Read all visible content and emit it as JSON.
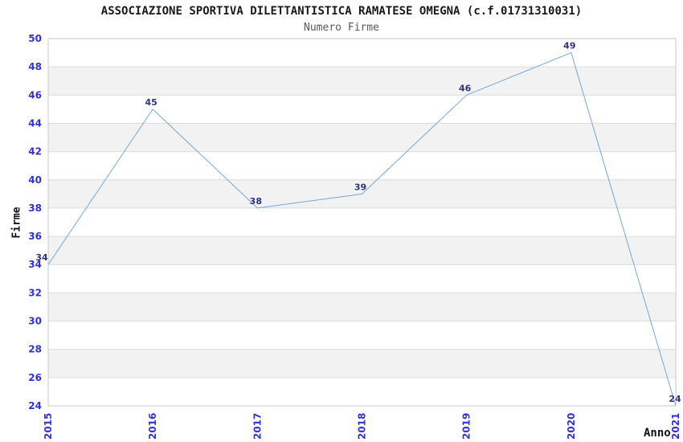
{
  "header": {
    "title": "ASSOCIAZIONE SPORTIVA DILETTANTISTICA RAMATESE OMEGNA (c.f.01731310031)",
    "subtitle": "Numero Firme"
  },
  "chart_data": {
    "type": "line",
    "title": "ASSOCIAZIONE SPORTIVA DILETTANTISTICA RAMATESE OMEGNA (c.f.01731310031)",
    "subtitle": "Numero Firme",
    "xlabel": "Anno",
    "ylabel": "Firme",
    "categories": [
      "2015",
      "2016",
      "2017",
      "2018",
      "2019",
      "2020",
      "2021"
    ],
    "values": [
      34,
      45,
      38,
      39,
      46,
      49,
      24
    ],
    "point_labels": [
      "34",
      "45",
      "38",
      "39",
      "46",
      "49",
      "24"
    ],
    "ylim": [
      24,
      50
    ],
    "ytick_step": 2,
    "yticks": [
      24,
      26,
      28,
      30,
      32,
      34,
      36,
      38,
      40,
      42,
      44,
      46,
      48,
      50
    ],
    "grid": "horizontal-bands",
    "legend": "none",
    "colors": {
      "line": "#74a7dd",
      "tick_label": "#3232cd",
      "point_label": "#333380",
      "band_gray": "#f2f2f2",
      "band_white": "#ffffff",
      "gridline": "#dcdcdc",
      "plot_border": "#c9c9c9",
      "title": "#1a1a1a",
      "subtitle": "#595959",
      "axis_title": "#111111"
    }
  }
}
